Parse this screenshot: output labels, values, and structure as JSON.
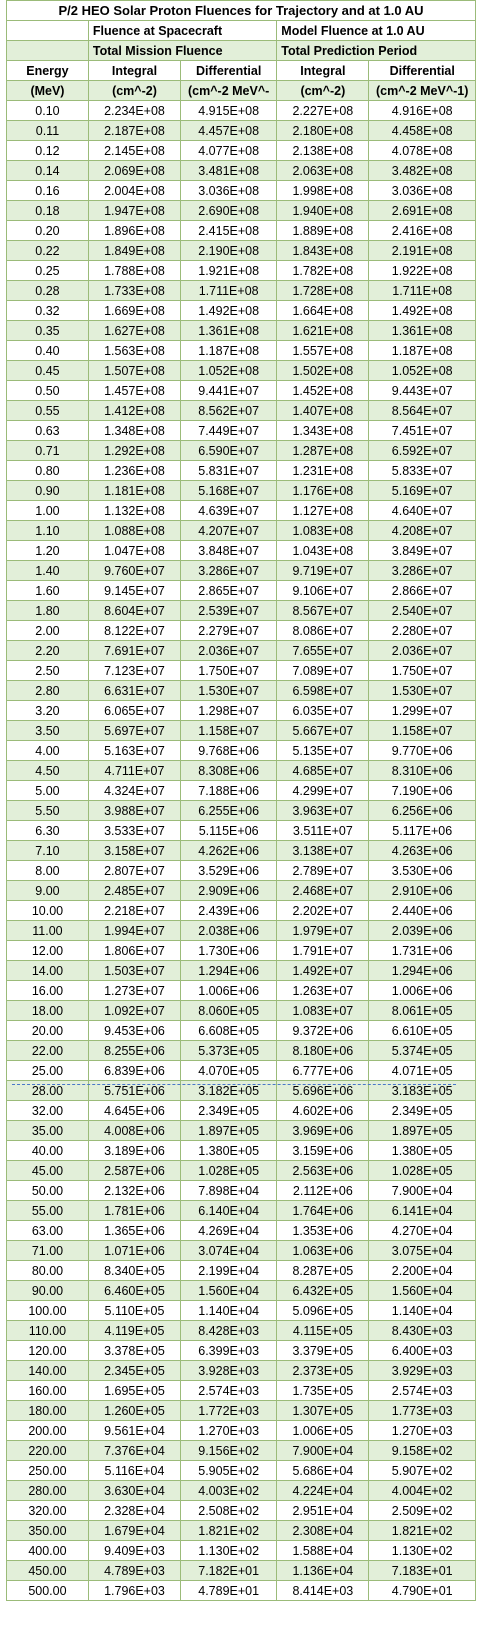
{
  "title": "P/2 HEO Solar Proton Fluences for Trajectory and at 1.0 AU",
  "group1": {
    "line1": "Fluence at Spacecraft",
    "line2": "Total Mission Fluence"
  },
  "group2": {
    "line1": "Model Fluence at 1.0 AU",
    "line2": "Total Prediction Period"
  },
  "columns": {
    "energy": [
      "Energy",
      "(MeV)"
    ],
    "sc_integral": [
      "Integral",
      "(cm^-2)"
    ],
    "sc_differential": [
      "Differential",
      "(cm^-2 MeV^-"
    ],
    "au_integral": [
      "Integral",
      "(cm^-2)"
    ],
    "au_differential": [
      "Differential",
      "(cm^-2 MeV^-1)"
    ]
  },
  "rows": [
    [
      "0.10",
      "2.234E+08",
      "4.915E+08",
      "2.227E+08",
      "4.916E+08"
    ],
    [
      "0.11",
      "2.187E+08",
      "4.457E+08",
      "2.180E+08",
      "4.458E+08"
    ],
    [
      "0.12",
      "2.145E+08",
      "4.077E+08",
      "2.138E+08",
      "4.078E+08"
    ],
    [
      "0.14",
      "2.069E+08",
      "3.481E+08",
      "2.063E+08",
      "3.482E+08"
    ],
    [
      "0.16",
      "2.004E+08",
      "3.036E+08",
      "1.998E+08",
      "3.036E+08"
    ],
    [
      "0.18",
      "1.947E+08",
      "2.690E+08",
      "1.940E+08",
      "2.691E+08"
    ],
    [
      "0.20",
      "1.896E+08",
      "2.415E+08",
      "1.889E+08",
      "2.416E+08"
    ],
    [
      "0.22",
      "1.849E+08",
      "2.190E+08",
      "1.843E+08",
      "2.191E+08"
    ],
    [
      "0.25",
      "1.788E+08",
      "1.921E+08",
      "1.782E+08",
      "1.922E+08"
    ],
    [
      "0.28",
      "1.733E+08",
      "1.711E+08",
      "1.728E+08",
      "1.711E+08"
    ],
    [
      "0.32",
      "1.669E+08",
      "1.492E+08",
      "1.664E+08",
      "1.492E+08"
    ],
    [
      "0.35",
      "1.627E+08",
      "1.361E+08",
      "1.621E+08",
      "1.361E+08"
    ],
    [
      "0.40",
      "1.563E+08",
      "1.187E+08",
      "1.557E+08",
      "1.187E+08"
    ],
    [
      "0.45",
      "1.507E+08",
      "1.052E+08",
      "1.502E+08",
      "1.052E+08"
    ],
    [
      "0.50",
      "1.457E+08",
      "9.441E+07",
      "1.452E+08",
      "9.443E+07"
    ],
    [
      "0.55",
      "1.412E+08",
      "8.562E+07",
      "1.407E+08",
      "8.564E+07"
    ],
    [
      "0.63",
      "1.348E+08",
      "7.449E+07",
      "1.343E+08",
      "7.451E+07"
    ],
    [
      "0.71",
      "1.292E+08",
      "6.590E+07",
      "1.287E+08",
      "6.592E+07"
    ],
    [
      "0.80",
      "1.236E+08",
      "5.831E+07",
      "1.231E+08",
      "5.833E+07"
    ],
    [
      "0.90",
      "1.181E+08",
      "5.168E+07",
      "1.176E+08",
      "5.169E+07"
    ],
    [
      "1.00",
      "1.132E+08",
      "4.639E+07",
      "1.127E+08",
      "4.640E+07"
    ],
    [
      "1.10",
      "1.088E+08",
      "4.207E+07",
      "1.083E+08",
      "4.208E+07"
    ],
    [
      "1.20",
      "1.047E+08",
      "3.848E+07",
      "1.043E+08",
      "3.849E+07"
    ],
    [
      "1.40",
      "9.760E+07",
      "3.286E+07",
      "9.719E+07",
      "3.286E+07"
    ],
    [
      "1.60",
      "9.145E+07",
      "2.865E+07",
      "9.106E+07",
      "2.866E+07"
    ],
    [
      "1.80",
      "8.604E+07",
      "2.539E+07",
      "8.567E+07",
      "2.540E+07"
    ],
    [
      "2.00",
      "8.122E+07",
      "2.279E+07",
      "8.086E+07",
      "2.280E+07"
    ],
    [
      "2.20",
      "7.691E+07",
      "2.036E+07",
      "7.655E+07",
      "2.036E+07"
    ],
    [
      "2.50",
      "7.123E+07",
      "1.750E+07",
      "7.089E+07",
      "1.750E+07"
    ],
    [
      "2.80",
      "6.631E+07",
      "1.530E+07",
      "6.598E+07",
      "1.530E+07"
    ],
    [
      "3.20",
      "6.065E+07",
      "1.298E+07",
      "6.035E+07",
      "1.299E+07"
    ],
    [
      "3.50",
      "5.697E+07",
      "1.158E+07",
      "5.667E+07",
      "1.158E+07"
    ],
    [
      "4.00",
      "5.163E+07",
      "9.768E+06",
      "5.135E+07",
      "9.770E+06"
    ],
    [
      "4.50",
      "4.711E+07",
      "8.308E+06",
      "4.685E+07",
      "8.310E+06"
    ],
    [
      "5.00",
      "4.324E+07",
      "7.188E+06",
      "4.299E+07",
      "7.190E+06"
    ],
    [
      "5.50",
      "3.988E+07",
      "6.255E+06",
      "3.963E+07",
      "6.256E+06"
    ],
    [
      "6.30",
      "3.533E+07",
      "5.115E+06",
      "3.511E+07",
      "5.117E+06"
    ],
    [
      "7.10",
      "3.158E+07",
      "4.262E+06",
      "3.138E+07",
      "4.263E+06"
    ],
    [
      "8.00",
      "2.807E+07",
      "3.529E+06",
      "2.789E+07",
      "3.530E+06"
    ],
    [
      "9.00",
      "2.485E+07",
      "2.909E+06",
      "2.468E+07",
      "2.910E+06"
    ],
    [
      "10.00",
      "2.218E+07",
      "2.439E+06",
      "2.202E+07",
      "2.440E+06"
    ],
    [
      "11.00",
      "1.994E+07",
      "2.038E+06",
      "1.979E+07",
      "2.039E+06"
    ],
    [
      "12.00",
      "1.806E+07",
      "1.730E+06",
      "1.791E+07",
      "1.731E+06"
    ],
    [
      "14.00",
      "1.503E+07",
      "1.294E+06",
      "1.492E+07",
      "1.294E+06"
    ],
    [
      "16.00",
      "1.273E+07",
      "1.006E+06",
      "1.263E+07",
      "1.006E+06"
    ],
    [
      "18.00",
      "1.092E+07",
      "8.060E+05",
      "1.083E+07",
      "8.061E+05"
    ],
    [
      "20.00",
      "9.453E+06",
      "6.608E+05",
      "9.372E+06",
      "6.610E+05"
    ],
    [
      "22.00",
      "8.255E+06",
      "5.373E+05",
      "8.180E+06",
      "5.374E+05"
    ],
    [
      "25.00",
      "6.839E+06",
      "4.070E+05",
      "6.777E+06",
      "4.071E+05"
    ],
    [
      "28.00",
      "5.751E+06",
      "3.182E+05",
      "5.696E+06",
      "3.183E+05"
    ],
    [
      "32.00",
      "4.645E+06",
      "2.349E+05",
      "4.602E+06",
      "2.349E+05"
    ],
    [
      "35.00",
      "4.008E+06",
      "1.897E+05",
      "3.969E+06",
      "1.897E+05"
    ],
    [
      "40.00",
      "3.189E+06",
      "1.380E+05",
      "3.159E+06",
      "1.380E+05"
    ],
    [
      "45.00",
      "2.587E+06",
      "1.028E+05",
      "2.563E+06",
      "1.028E+05"
    ],
    [
      "50.00",
      "2.132E+06",
      "7.898E+04",
      "2.112E+06",
      "7.900E+04"
    ],
    [
      "55.00",
      "1.781E+06",
      "6.140E+04",
      "1.764E+06",
      "6.141E+04"
    ],
    [
      "63.00",
      "1.365E+06",
      "4.269E+04",
      "1.353E+06",
      "4.270E+04"
    ],
    [
      "71.00",
      "1.071E+06",
      "3.074E+04",
      "1.063E+06",
      "3.075E+04"
    ],
    [
      "80.00",
      "8.340E+05",
      "2.199E+04",
      "8.287E+05",
      "2.200E+04"
    ],
    [
      "90.00",
      "6.460E+05",
      "1.560E+04",
      "6.432E+05",
      "1.560E+04"
    ],
    [
      "100.00",
      "5.110E+05",
      "1.140E+04",
      "5.096E+05",
      "1.140E+04"
    ],
    [
      "110.00",
      "4.119E+05",
      "8.428E+03",
      "4.115E+05",
      "8.430E+03"
    ],
    [
      "120.00",
      "3.378E+05",
      "6.399E+03",
      "3.379E+05",
      "6.400E+03"
    ],
    [
      "140.00",
      "2.345E+05",
      "3.928E+03",
      "2.373E+05",
      "3.929E+03"
    ],
    [
      "160.00",
      "1.695E+05",
      "2.574E+03",
      "1.735E+05",
      "2.574E+03"
    ],
    [
      "180.00",
      "1.260E+05",
      "1.772E+03",
      "1.307E+05",
      "1.773E+03"
    ],
    [
      "200.00",
      "9.561E+04",
      "1.270E+03",
      "1.006E+05",
      "1.270E+03"
    ],
    [
      "220.00",
      "7.376E+04",
      "9.156E+02",
      "7.900E+04",
      "9.158E+02"
    ],
    [
      "250.00",
      "5.116E+04",
      "5.905E+02",
      "5.686E+04",
      "5.907E+02"
    ],
    [
      "280.00",
      "3.630E+04",
      "4.003E+02",
      "4.224E+04",
      "4.004E+02"
    ],
    [
      "320.00",
      "2.328E+04",
      "2.508E+02",
      "2.951E+04",
      "2.509E+02"
    ],
    [
      "350.00",
      "1.679E+04",
      "1.821E+02",
      "2.308E+04",
      "1.821E+02"
    ],
    [
      "400.00",
      "9.409E+03",
      "1.130E+02",
      "1.588E+04",
      "1.130E+02"
    ],
    [
      "450.00",
      "4.789E+03",
      "7.182E+01",
      "1.136E+04",
      "7.183E+01"
    ],
    [
      "500.00",
      "1.796E+03",
      "4.789E+01",
      "8.414E+03",
      "4.790E+01"
    ]
  ],
  "colors": {
    "grid": "#9bbb79",
    "band": "#e2efd9",
    "pagebreak": "#4a78c8"
  }
}
